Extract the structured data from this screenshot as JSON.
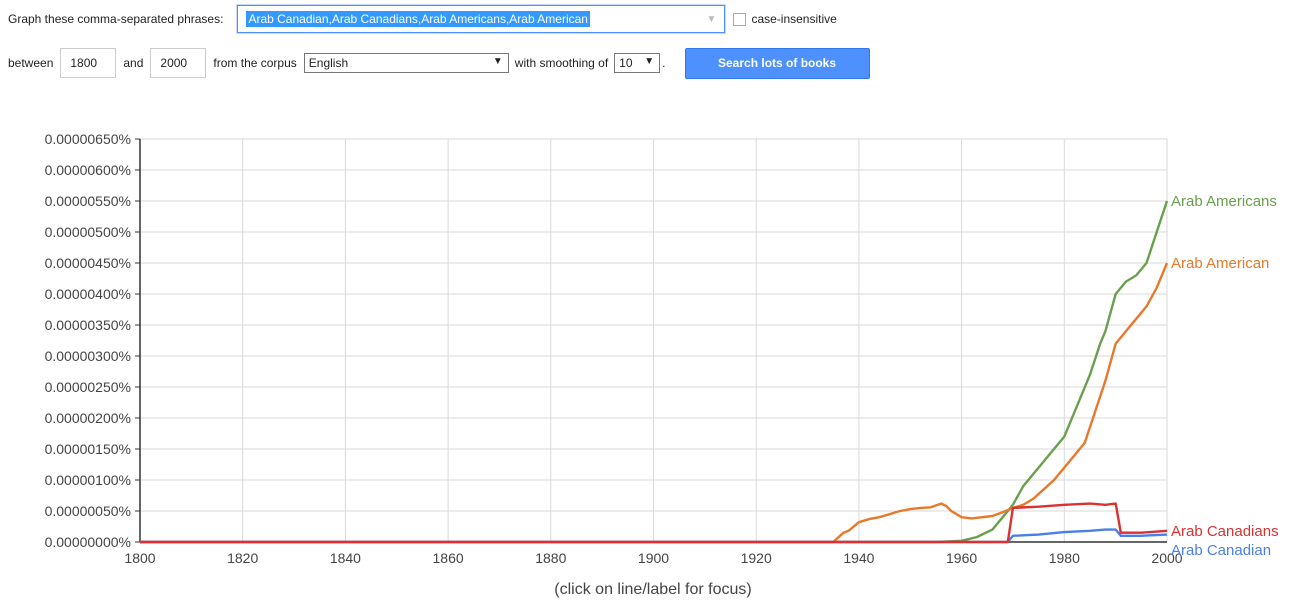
{
  "form": {
    "phrases_label": "Graph these comma-separated phrases:",
    "phrases_value": "Arab Canadian,Arab Canadians,Arab Americans,Arab American",
    "case_label": "case-insensitive",
    "between_label": "between",
    "start_year": "1800",
    "and_label": "and",
    "end_year": "2000",
    "corpus_label": "from the corpus",
    "corpus_value": "English",
    "smoothing_label": "with smoothing of",
    "smoothing_value": "10",
    "period": ".",
    "search_button": "Search lots of books"
  },
  "chart_data": {
    "type": "line",
    "xlabel": "(click on line/label for focus)",
    "xlim": [
      1800,
      2000
    ],
    "ylim": [
      0,
      6.5e-06
    ],
    "x_ticks": [
      1800,
      1820,
      1840,
      1860,
      1880,
      1900,
      1920,
      1940,
      1960,
      1980,
      2000
    ],
    "y_ticks": [
      "0.00000000%",
      "0.00000050%",
      "0.00000100%",
      "0.00000150%",
      "0.00000200%",
      "0.00000250%",
      "0.00000300%",
      "0.00000350%",
      "0.00000400%",
      "0.00000450%",
      "0.00000500%",
      "0.00000550%",
      "0.00000600%",
      "0.00000650%"
    ],
    "grid": true,
    "series": [
      {
        "name": "Arab Americans",
        "color": "#6a9f4d",
        "x": [
          1800,
          1955,
          1960,
          1963,
          1966,
          1968,
          1970,
          1972,
          1975,
          1978,
          1980,
          1982,
          1985,
          1987,
          1988,
          1990,
          1992,
          1994,
          1996,
          1998,
          2000
        ],
        "y": [
          0,
          0,
          2e-08,
          8e-08,
          2e-07,
          4e-07,
          6e-07,
          9e-07,
          1.2e-06,
          1.5e-06,
          1.7e-06,
          2.1e-06,
          2.7e-06,
          3.2e-06,
          3.4e-06,
          4e-06,
          4.2e-06,
          4.3e-06,
          4.5e-06,
          5e-06,
          5.5e-06
        ]
      },
      {
        "name": "Arab American",
        "color": "#e8782b",
        "x": [
          1800,
          1935,
          1937,
          1938,
          1940,
          1942,
          1944,
          1946,
          1948,
          1950,
          1952,
          1954,
          1956,
          1957,
          1958,
          1960,
          1962,
          1964,
          1966,
          1968,
          1970,
          1972,
          1974,
          1976,
          1978,
          1980,
          1982,
          1984,
          1986,
          1988,
          1990,
          1992,
          1994,
          1996,
          1998,
          2000
        ],
        "y": [
          0,
          0,
          1.5e-07,
          1.8e-07,
          3.2e-07,
          3.7e-07,
          4e-07,
          4.5e-07,
          5e-07,
          5.3e-07,
          5.5e-07,
          5.6e-07,
          6.2e-07,
          5.8e-07,
          5e-07,
          4e-07,
          3.8e-07,
          4e-07,
          4.2e-07,
          4.8e-07,
          5.5e-07,
          6e-07,
          7e-07,
          8.5e-07,
          1e-06,
          1.2e-06,
          1.4e-06,
          1.6e-06,
          2.1e-06,
          2.6e-06,
          3.2e-06,
          3.4e-06,
          3.6e-06,
          3.8e-06,
          4.1e-06,
          4.5e-06
        ]
      },
      {
        "name": "Arab Canadian",
        "color": "#4a7fe8",
        "x": [
          1800,
          1969,
          1970,
          1975,
          1980,
          1985,
          1988,
          1990,
          1991,
          1995,
          2000
        ],
        "y": [
          0,
          0,
          1e-07,
          1.2e-07,
          1.6e-07,
          1.8e-07,
          2e-07,
          2e-07,
          1e-07,
          1e-07,
          1.2e-07
        ]
      },
      {
        "name": "Arab Canadians",
        "color": "#d93232",
        "x": [
          1800,
          1969,
          1970,
          1975,
          1980,
          1985,
          1988,
          1990,
          1991,
          1995,
          2000
        ],
        "y": [
          0,
          0,
          5.5e-07,
          5.7e-07,
          6e-07,
          6.2e-07,
          6e-07,
          6.2e-07,
          1.5e-07,
          1.5e-07,
          1.8e-07
        ]
      }
    ]
  }
}
